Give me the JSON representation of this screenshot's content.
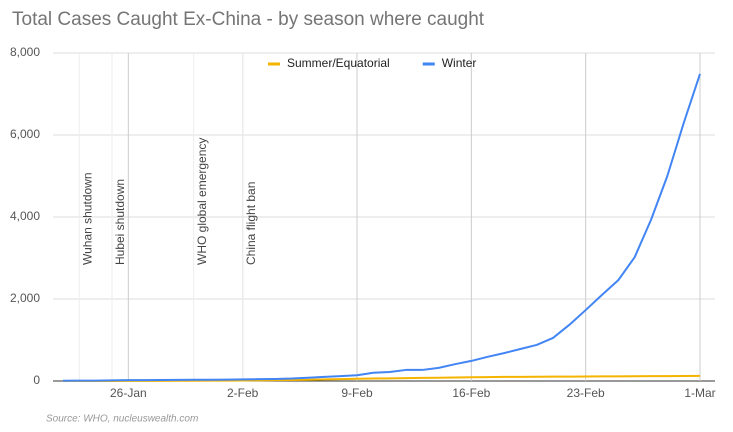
{
  "chart_data": {
    "type": "line",
    "title": "Total Cases Caught Ex-China - by season where caught",
    "source": "Source: WHO, nucleuswealth.com",
    "categories": [
      null,
      null,
      null,
      null,
      "26-Jan",
      null,
      null,
      null,
      null,
      null,
      null,
      "2-Feb",
      null,
      null,
      null,
      null,
      null,
      null,
      "9-Feb",
      null,
      null,
      null,
      null,
      null,
      null,
      "16-Feb",
      null,
      null,
      null,
      null,
      null,
      null,
      "23-Feb",
      null,
      null,
      null,
      null,
      null,
      null,
      "1-Mar"
    ],
    "series": [
      {
        "name": "Summer/Equatorial",
        "color": "#f4b400",
        "values": [
          0,
          0,
          1,
          1,
          2,
          3,
          4,
          5,
          6,
          8,
          10,
          12,
          15,
          20,
          25,
          30,
          40,
          45,
          55,
          60,
          65,
          70,
          75,
          80,
          85,
          90,
          95,
          100,
          102,
          104,
          106,
          108,
          110,
          112,
          114,
          116,
          118,
          120,
          122,
          125
        ]
      },
      {
        "name": "Winter",
        "color": "#4285f4",
        "values": [
          5,
          8,
          10,
          15,
          20,
          22,
          25,
          28,
          30,
          32,
          35,
          40,
          45,
          50,
          60,
          80,
          100,
          120,
          140,
          200,
          220,
          270,
          270,
          320,
          410,
          490,
          590,
          680,
          780,
          880,
          1050,
          1370,
          1730,
          2100,
          2460,
          3020,
          3930,
          5000,
          6290,
          7490
        ]
      }
    ],
    "annotations": [
      {
        "label": "Wuhan shutdown",
        "at": 1
      },
      {
        "label": "Hubei shutdown",
        "at": 3
      },
      {
        "label": "WHO global emergency",
        "at": 8
      },
      {
        "label": "China flight ban",
        "at": 11
      }
    ],
    "ylim": [
      0,
      8000
    ],
    "yticks": [
      0,
      {
        "value": 2000,
        "label": "2,000"
      },
      {
        "value": 4000,
        "label": "4,000"
      },
      {
        "value": 6000,
        "label": "6,000"
      },
      {
        "value": 8000,
        "label": "8,000"
      }
    ],
    "grid": true,
    "legend": "top"
  }
}
